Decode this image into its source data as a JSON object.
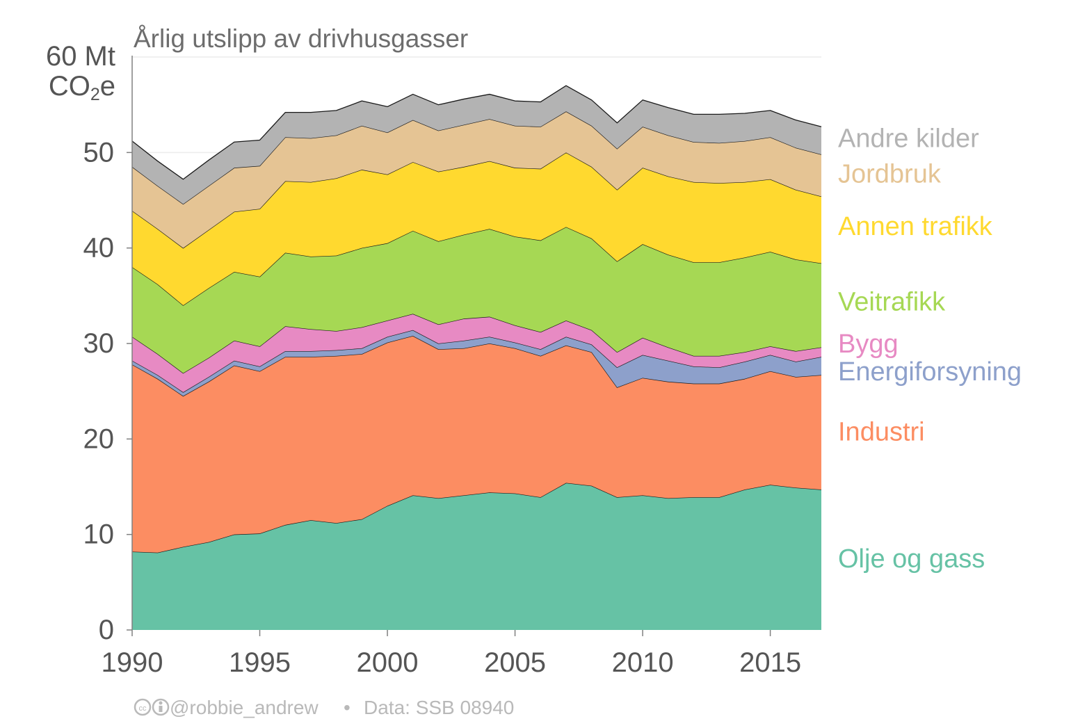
{
  "chart_data": {
    "type": "area",
    "stacked": true,
    "title": "Årlig utslipp av drivhusgasser",
    "ylabel_line1": "60 Mt",
    "ylabel_line2_main": "CO",
    "ylabel_line2_sub": "2",
    "ylabel_line2_end": "e",
    "xlim": [
      1990,
      2017
    ],
    "ylim": [
      0,
      60
    ],
    "x_ticks": [
      1990,
      1995,
      2000,
      2005,
      2010,
      2015
    ],
    "x_tick_labels": [
      "1990",
      "1995",
      "2000",
      "2005",
      "2010",
      "2015"
    ],
    "y_ticks": [
      0,
      10,
      20,
      30,
      40,
      50
    ],
    "y_tick_labels": [
      "0",
      "10",
      "20",
      "30",
      "40",
      "50"
    ],
    "grid": "horizontal",
    "years": [
      1990,
      1991,
      1992,
      1993,
      1994,
      1995,
      1996,
      1997,
      1998,
      1999,
      2000,
      2001,
      2002,
      2003,
      2004,
      2005,
      2006,
      2007,
      2008,
      2009,
      2010,
      2011,
      2012,
      2013,
      2014,
      2015,
      2016,
      2017
    ],
    "series": [
      {
        "name": "Olje og gass",
        "color": "#66c2a5",
        "values": [
          8.2,
          8.1,
          8.7,
          9.2,
          10.0,
          10.1,
          11.0,
          11.5,
          11.2,
          11.6,
          13.0,
          14.1,
          13.8,
          14.1,
          14.4,
          14.3,
          13.9,
          15.4,
          15.1,
          13.9,
          14.1,
          13.8,
          13.9,
          13.9,
          14.7,
          15.2,
          14.9,
          14.7
        ]
      },
      {
        "name": "Industri",
        "color": "#fc8d62",
        "values": [
          19.6,
          18.2,
          15.8,
          16.8,
          17.7,
          17.0,
          17.6,
          17.1,
          17.5,
          17.3,
          17.1,
          16.7,
          15.6,
          15.4,
          15.6,
          15.2,
          14.8,
          14.4,
          14.0,
          11.5,
          12.3,
          12.2,
          11.9,
          11.9,
          11.6,
          11.9,
          11.6,
          12.0
        ]
      },
      {
        "name": "Energiforsyning",
        "color": "#8da0cb",
        "values": [
          0.4,
          0.4,
          0.4,
          0.5,
          0.5,
          0.5,
          0.6,
          0.6,
          0.6,
          0.6,
          0.6,
          0.6,
          0.6,
          0.8,
          0.7,
          0.6,
          0.7,
          0.9,
          0.8,
          2.1,
          2.4,
          2.2,
          1.8,
          1.7,
          1.8,
          1.7,
          1.6,
          1.9
        ]
      },
      {
        "name": "Bygg",
        "color": "#e78ac3",
        "values": [
          2.5,
          2.2,
          2.0,
          2.0,
          2.1,
          2.1,
          2.6,
          2.3,
          2.0,
          2.2,
          1.7,
          1.7,
          2.0,
          2.3,
          2.1,
          1.8,
          1.8,
          1.7,
          1.5,
          1.6,
          1.8,
          1.4,
          1.1,
          1.2,
          1.0,
          0.9,
          1.1,
          1.0
        ]
      },
      {
        "name": "Veitrafikk",
        "color": "#a6d854",
        "values": [
          7.3,
          7.3,
          7.1,
          7.3,
          7.2,
          7.3,
          7.7,
          7.6,
          7.9,
          8.3,
          8.1,
          8.7,
          8.7,
          8.8,
          9.2,
          9.3,
          9.6,
          9.8,
          9.6,
          9.5,
          9.8,
          9.7,
          9.8,
          9.8,
          9.9,
          9.9,
          9.6,
          8.8
        ]
      },
      {
        "name": "Annen trafikk",
        "color": "#ffd92f",
        "values": [
          5.9,
          5.8,
          6.0,
          6.1,
          6.3,
          7.1,
          7.5,
          7.8,
          8.1,
          8.2,
          7.2,
          7.2,
          7.3,
          7.1,
          7.1,
          7.2,
          7.5,
          7.8,
          7.5,
          7.5,
          8.0,
          8.2,
          8.4,
          8.3,
          7.9,
          7.6,
          7.3,
          7.0
        ]
      },
      {
        "name": "Jordbruk",
        "color": "#e5c494",
        "values": [
          4.6,
          4.5,
          4.6,
          4.6,
          4.6,
          4.5,
          4.6,
          4.6,
          4.5,
          4.6,
          4.4,
          4.4,
          4.3,
          4.4,
          4.4,
          4.4,
          4.4,
          4.3,
          4.3,
          4.3,
          4.3,
          4.3,
          4.2,
          4.2,
          4.3,
          4.4,
          4.4,
          4.4
        ]
      },
      {
        "name": "Andre kilder",
        "color": "#b3b3b3",
        "values": [
          2.7,
          2.6,
          2.6,
          2.7,
          2.7,
          2.7,
          2.6,
          2.7,
          2.6,
          2.6,
          2.7,
          2.7,
          2.7,
          2.7,
          2.6,
          2.6,
          2.6,
          2.7,
          2.7,
          2.7,
          2.8,
          2.9,
          2.9,
          3.0,
          2.9,
          2.8,
          2.9,
          2.9
        ]
      }
    ],
    "legend": [
      {
        "name": "Andre kilder",
        "color": "#b3b3b3",
        "y": 51.5
      },
      {
        "name": "Jordbruk",
        "color": "#e5c494",
        "y": 47.8
      },
      {
        "name": "Annen trafikk",
        "color": "#ffd92f",
        "y": 42.3
      },
      {
        "name": "Veitrafikk",
        "color": "#a6d854",
        "y": 34.4
      },
      {
        "name": "Bygg",
        "color": "#e78ac3",
        "y": 30.0
      },
      {
        "name": "Energiforsyning",
        "color": "#8da0cb",
        "y": 27.1
      },
      {
        "name": "Industri",
        "color": "#fc8d62",
        "y": 20.8
      },
      {
        "name": "Olje og gass",
        "color": "#66c2a5",
        "y": 7.5
      }
    ],
    "credit_handle": "@robbie_andrew",
    "credit_sep": "•",
    "credit_source": "Data: SSB 08940"
  }
}
